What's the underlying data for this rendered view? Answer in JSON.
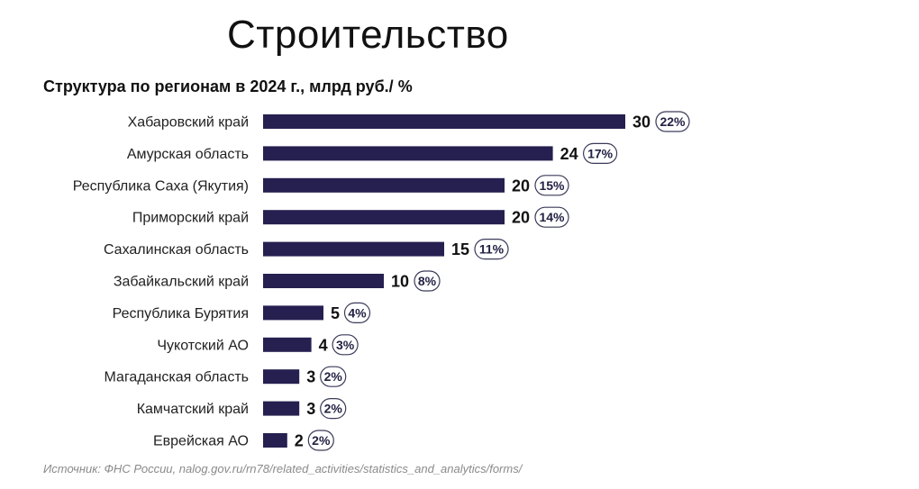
{
  "header": {
    "title": "Строительство",
    "subtitle": "Структура по регионам в 2024 г., млрд руб./ %"
  },
  "source": "Источник: ФНС России, nalog.gov.ru/rn78/related_activities/statistics_and_analytics/forms/",
  "colors": {
    "bar": "#252050",
    "pill_border": "#3a3a5a"
  },
  "chart_data": {
    "type": "bar",
    "orientation": "horizontal",
    "title": "Строительство",
    "subtitle": "Структура по регионам в 2024 г., млрд руб./ %",
    "xlabel": "",
    "ylabel": "",
    "grid": false,
    "categories": [
      "Хабаровский край",
      "Амурская область",
      "Республика Саха (Якутия)",
      "Приморский край",
      "Сахалинская область",
      "Забайкальский край",
      "Республика Бурятия",
      "Чукотский АО",
      "Магаданская область",
      "Камчатский край",
      "Еврейская АО"
    ],
    "values": [
      30,
      24,
      20,
      20,
      15,
      10,
      5,
      4,
      3,
      3,
      2
    ],
    "value_labels": [
      "30",
      "24",
      "20",
      "20",
      "15",
      "10",
      "5",
      "4",
      "3",
      "3",
      "2"
    ],
    "percent_labels": [
      "22%",
      "17%",
      "15%",
      "14%",
      "11%",
      "8%",
      "4%",
      "3%",
      "2%",
      "2%",
      "2%"
    ],
    "xlim": [
      0,
      30
    ]
  }
}
